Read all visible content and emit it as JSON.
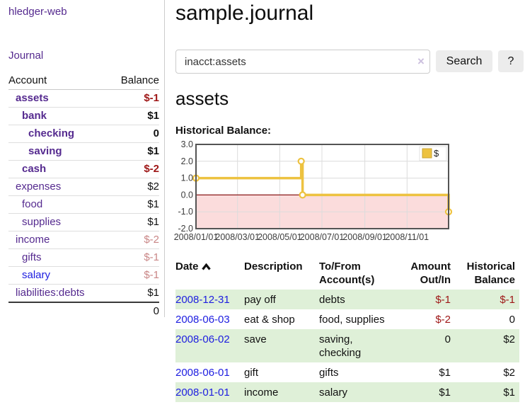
{
  "app_title": "hledger-web",
  "colors": {
    "link_purple": "#552a8f",
    "link_blue": "#1d1de0",
    "negative_strong": "#9e1616",
    "negative_soft": "#c98686",
    "row_stripe_green": "#dff0d8",
    "series_gold": "#EDC240"
  },
  "sidebar": {
    "journal_link": "Journal",
    "accounts_table": {
      "account_header": "Account",
      "balance_header": "Balance",
      "rows": [
        {
          "name": "assets",
          "balance": "$-1",
          "indent": 1,
          "bold": true,
          "balance_color": "negative-strong",
          "name_color": "purple"
        },
        {
          "name": "bank",
          "balance": "$1",
          "indent": 2,
          "bold": true,
          "balance_color": "normal",
          "name_color": "purple"
        },
        {
          "name": "checking",
          "balance": "0",
          "indent": 3,
          "bold": true,
          "balance_color": "normal",
          "name_color": "purple"
        },
        {
          "name": "saving",
          "balance": "$1",
          "indent": 3,
          "bold": true,
          "balance_color": "normal",
          "name_color": "purple"
        },
        {
          "name": "cash",
          "balance": "$-2",
          "indent": 2,
          "bold": true,
          "balance_color": "negative-strong",
          "name_color": "purple"
        },
        {
          "name": "expenses",
          "balance": "$2",
          "indent": 1,
          "bold": false,
          "balance_color": "normal",
          "name_color": "purple"
        },
        {
          "name": "food",
          "balance": "$1",
          "indent": 2,
          "bold": false,
          "balance_color": "normal",
          "name_color": "purple"
        },
        {
          "name": "supplies",
          "balance": "$1",
          "indent": 2,
          "bold": false,
          "balance_color": "normal",
          "name_color": "purple"
        },
        {
          "name": "income",
          "balance": "$-2",
          "indent": 1,
          "bold": false,
          "balance_color": "negative-soft",
          "name_color": "purple"
        },
        {
          "name": "gifts",
          "balance": "$-1",
          "indent": 2,
          "bold": false,
          "balance_color": "negative-soft",
          "name_color": "purple"
        },
        {
          "name": "salary",
          "balance": "$-1",
          "indent": 2,
          "bold": false,
          "balance_color": "negative-soft",
          "name_color": "blue"
        },
        {
          "name": "liabilities:debts",
          "balance": "$1",
          "indent": 1,
          "bold": false,
          "balance_color": "normal",
          "name_color": "purple"
        }
      ],
      "total": "0"
    }
  },
  "main": {
    "title": "sample.journal",
    "search": {
      "value": "inacct:assets",
      "clear_icon": "×",
      "search_button": "Search",
      "help_button": "?"
    },
    "account_heading": "assets",
    "chart_title": "Historical Balance:"
  },
  "chart_data": {
    "type": "line",
    "step": true,
    "title": "Historical Balance",
    "series": [
      {
        "name": "$",
        "color": "#EDC240",
        "points": [
          {
            "date": "2008-01-01",
            "value": 1
          },
          {
            "date": "2008-06-01",
            "value": 2
          },
          {
            "date": "2008-06-03",
            "value": 0
          },
          {
            "date": "2008-12-31",
            "value": -1
          }
        ]
      }
    ],
    "point_days": [
      0,
      152,
      154,
      365
    ],
    "x_domain_days": [
      0,
      365
    ],
    "ylim": [
      -2,
      3
    ],
    "yticks": [
      "3.0",
      "2.0",
      "1.0",
      "0.0",
      "-1.0",
      "-2.0"
    ],
    "xticks": [
      "2008/01/01",
      "2008/03/01",
      "2008/05/01",
      "2008/07/01",
      "2008/09/01",
      "2008/11/01"
    ],
    "xtick_days": [
      0,
      60,
      121,
      182,
      244,
      305
    ],
    "grid": true,
    "negative_fill": "#fbdcdc",
    "zero_line_color": "#8b1a1a",
    "plot_border_color": "#545454",
    "legend": [
      {
        "label": "$",
        "color": "#EDC240"
      }
    ],
    "legend_position": "top-right"
  },
  "register": {
    "headers": {
      "date": "Date",
      "description": "Description",
      "tofrom": "To/From Account(s)",
      "amount": "Amount Out/In",
      "balance": "Historical Balance"
    },
    "sort_icon": "chevron-up",
    "rows": [
      {
        "date": "2008-12-31",
        "description": "pay off",
        "accounts": "debts",
        "amount": "$-1",
        "balance": "$-1",
        "amount_negative": true,
        "balance_negative": true,
        "highlight": true
      },
      {
        "date": "2008-06-03",
        "description": "eat & shop",
        "accounts": "food, supplies",
        "amount": "$-2",
        "balance": "0",
        "amount_negative": true,
        "balance_negative": false,
        "highlight": false
      },
      {
        "date": "2008-06-02",
        "description": "save",
        "accounts": "saving, checking",
        "amount": "0",
        "balance": "$2",
        "amount_negative": false,
        "balance_negative": false,
        "highlight": true
      },
      {
        "date": "2008-06-01",
        "description": "gift",
        "accounts": "gifts",
        "amount": "$1",
        "balance": "$2",
        "amount_negative": false,
        "balance_negative": false,
        "highlight": false
      },
      {
        "date": "2008-01-01",
        "description": "income",
        "accounts": "salary",
        "amount": "$1",
        "balance": "$1",
        "amount_negative": false,
        "balance_negative": false,
        "highlight": true
      }
    ]
  }
}
